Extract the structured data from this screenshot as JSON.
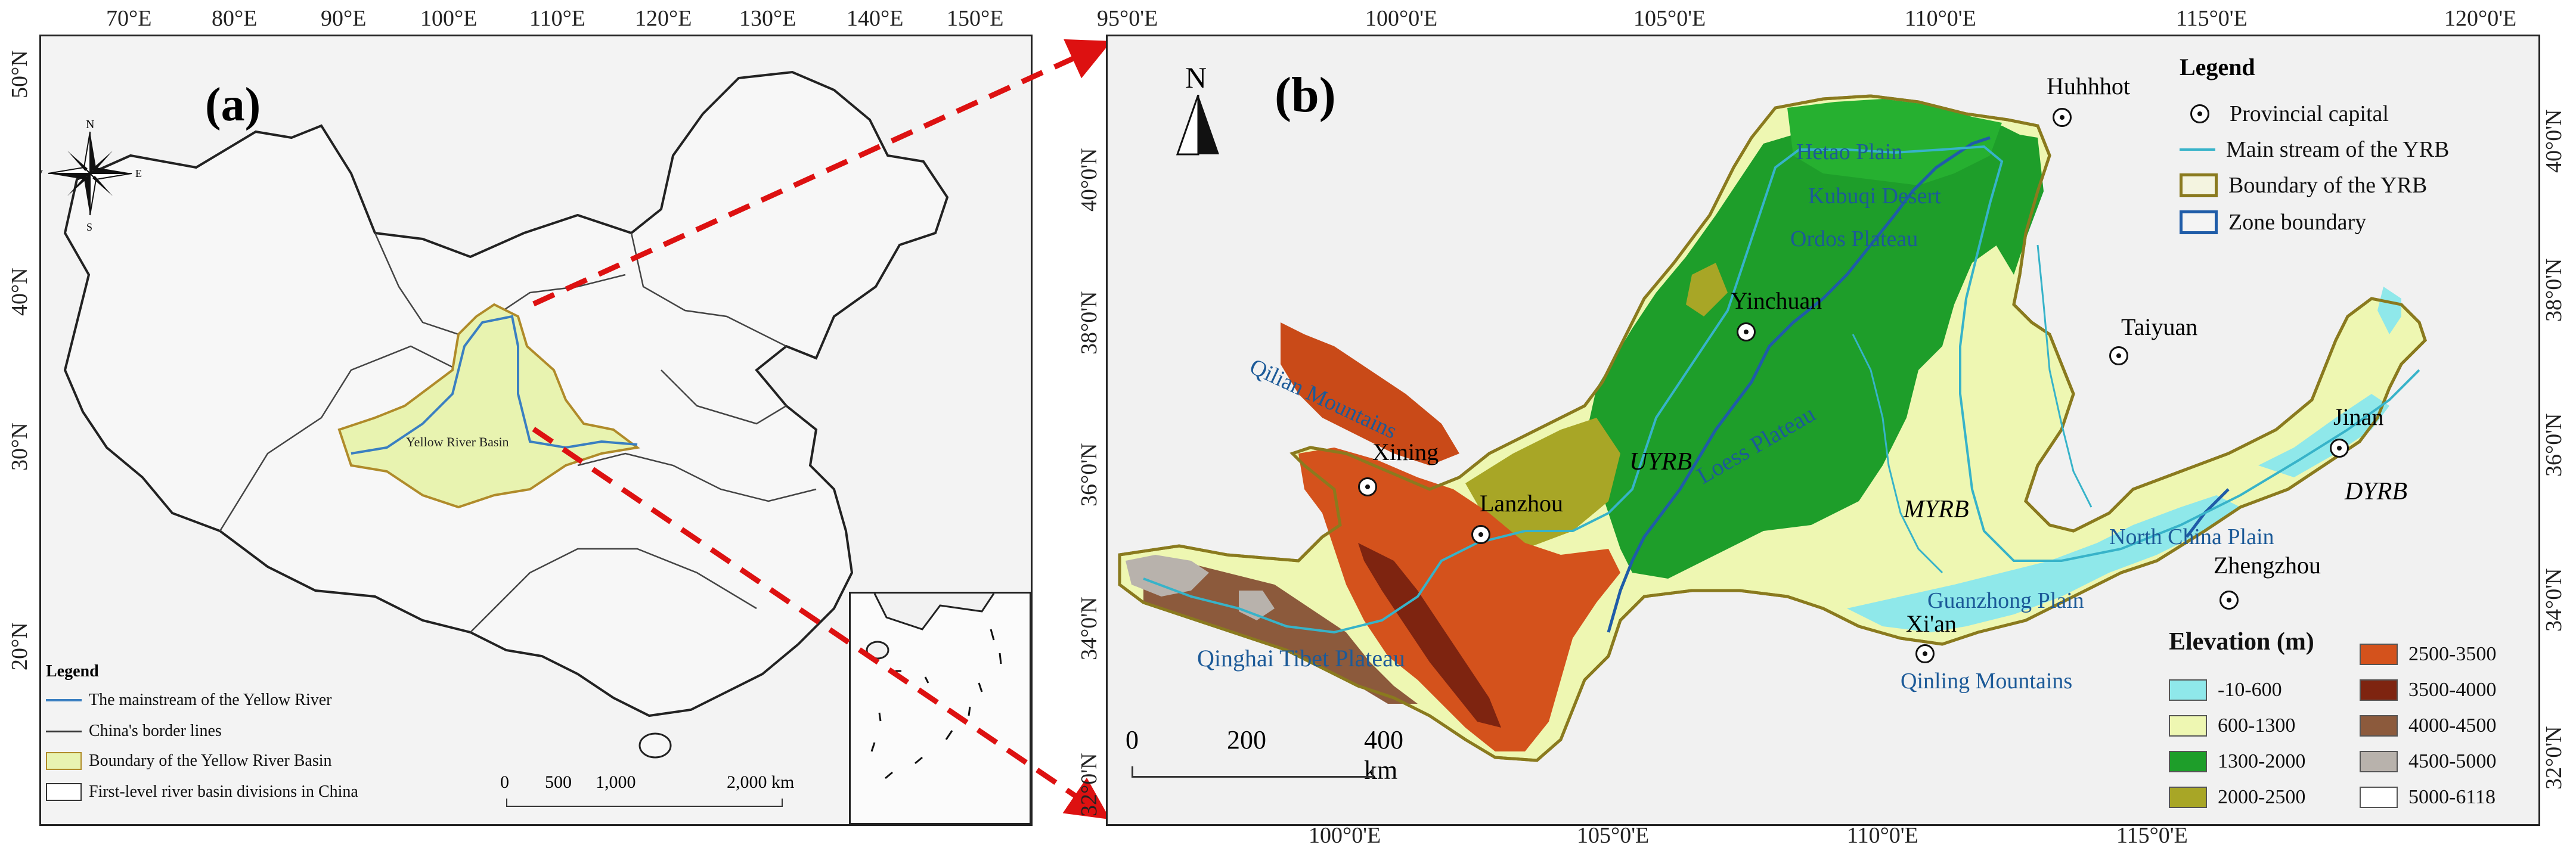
{
  "panel_a": {
    "label": "(a)",
    "top_ticks": [
      "70°E",
      "80°E",
      "90°E",
      "100°E",
      "110°E",
      "120°E",
      "130°E",
      "140°E",
      "150°E"
    ],
    "left_ticks": [
      "50°N",
      "40°N",
      "30°N",
      "20°N"
    ],
    "basin_label": "Yellow River Basin",
    "compass": {
      "n": "N",
      "s": "S",
      "e": "E",
      "w": "W"
    },
    "legend": {
      "title": "Legend",
      "items": [
        {
          "label": "The mainstream of the Yellow River",
          "symbol": "line",
          "color": "#3a7fc1"
        },
        {
          "label": "China's border lines",
          "symbol": "line",
          "color": "#333333"
        },
        {
          "label": "Boundary of the Yellow River Basin",
          "symbol": "fill",
          "color": "#e8f3b0",
          "stroke": "#b08b2a"
        },
        {
          "label": "First-level river basin divisions in China",
          "symbol": "fill",
          "color": "#ffffff",
          "stroke": "#333333"
        }
      ]
    },
    "scalebar": {
      "labels": [
        "0",
        "500",
        "1,000",
        "2,000 km"
      ]
    }
  },
  "panel_b": {
    "label": "(b)",
    "north_label": "N",
    "top_ticks": [
      "95°0'E",
      "100°0'E",
      "105°0'E",
      "110°0'E",
      "115°0'E",
      "120°0'E"
    ],
    "bottom_ticks": [
      "100°0'E",
      "105°0'E",
      "110°0'E",
      "115°0'E"
    ],
    "left_ticks": [
      "40°0'N",
      "38°0'N",
      "36°0'N",
      "34°0'N",
      "32°0'N"
    ],
    "right_ticks": [
      "40°0'N",
      "38°0'N",
      "36°0'N",
      "34°0'N",
      "32°0'N"
    ],
    "places": {
      "hetao": "Hetao Plain",
      "kubuqi": "Kubuqi Desert",
      "ordos": "Ordos Plateau",
      "qilian": "Qilian Mountains",
      "loess": "Loess Plateau",
      "guanzhong": "Guanzhong Plain",
      "qinling": "Qinling Mountains",
      "north_china": "North China Plain",
      "qinghai": "Qinghai Tibet Plateau"
    },
    "cities": {
      "hohhot": "Huhhhot",
      "yinchuan": "Yinchuan",
      "taiyuan": "Taiyuan",
      "xining": "Xining",
      "lanzhou": "Lanzhou",
      "zhengzhou": "Zhengzhou",
      "xian": "Xi'an",
      "jinan": "Jinan"
    },
    "zones": {
      "upper": "UYRB",
      "middle": "MYRB",
      "lower": "DYRB"
    },
    "legend": {
      "title": "Legend",
      "items": [
        {
          "label": "Provincial capital",
          "symbol": "city"
        },
        {
          "label": "Main stream of the YRB",
          "symbol": "line",
          "color": "#37b3c9"
        },
        {
          "label": "Boundary of the YRB",
          "symbol": "box",
          "color": "#8a7a1e"
        },
        {
          "label": "Zone  boundary",
          "symbol": "box",
          "color": "#1f5ca8"
        }
      ]
    },
    "elevation": {
      "title": "Elevation (m)",
      "classes": [
        {
          "label": "-10-600",
          "color": "#8fe8ea"
        },
        {
          "label": "600-1300",
          "color": "#eef7b2"
        },
        {
          "label": "1300-2000",
          "color": "#1e9e2a"
        },
        {
          "label": "2000-2500",
          "color": "#a8a626"
        },
        {
          "label": "2500-3500",
          "color": "#d4521c"
        },
        {
          "label": "3500-4000",
          "color": "#7e2410"
        },
        {
          "label": "4000-4500",
          "color": "#8c5a3c"
        },
        {
          "label": "4500-5000",
          "color": "#b8b2ac"
        },
        {
          "label": "5000-6118",
          "color": "#ffffff"
        }
      ]
    },
    "scalebar": {
      "labels": [
        "0",
        "200",
        "400 km"
      ]
    }
  }
}
